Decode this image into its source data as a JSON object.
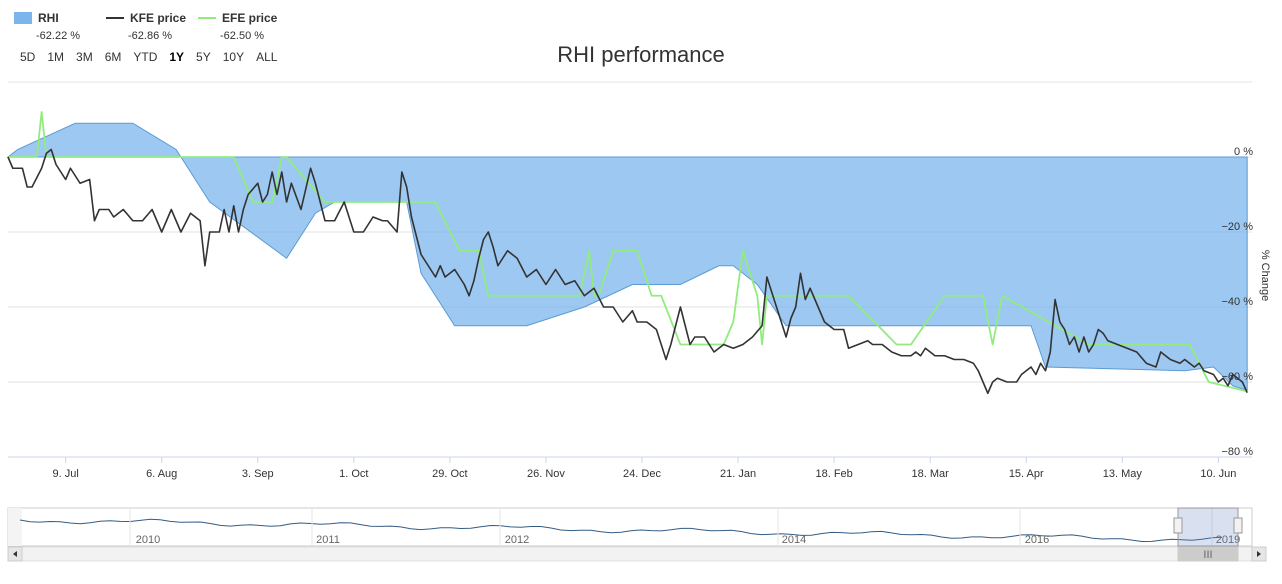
{
  "legend": {
    "items": [
      {
        "name": "RHI",
        "value": "-62.22 %",
        "color": "#7cb5ec",
        "kind": "area"
      },
      {
        "name": "KFE price",
        "value": "-62.86 %",
        "color": "#333333",
        "kind": "line"
      },
      {
        "name": "EFE price",
        "value": "-62.50 %",
        "color": "#90ed7d",
        "kind": "line"
      }
    ]
  },
  "range_selector": {
    "buttons": [
      "5D",
      "1M",
      "3M",
      "6M",
      "YTD",
      "1Y",
      "5Y",
      "10Y",
      "ALL"
    ],
    "active": "1Y"
  },
  "navigator": {
    "labels": [
      "2010",
      "2011",
      "2012",
      "2014",
      "2016",
      "2019"
    ],
    "scroll_grip": "III"
  },
  "chart_data": {
    "type": "line",
    "title": "RHI performance",
    "ylabel": "% Change",
    "ylim": [
      -80,
      20
    ],
    "yticks": [
      "0 %",
      "−20 %",
      "−40 %",
      "−60 %",
      "−80 %"
    ],
    "ytick_values": [
      0,
      -20,
      -40,
      -60,
      -80
    ],
    "x_tick_labels": [
      "9. Jul",
      "6. Aug",
      "3. Sep",
      "1. Oct",
      "29. Oct",
      "26. Nov",
      "24. Dec",
      "21. Jan",
      "18. Feb",
      "18. Mar",
      "15. Apr",
      "13. May",
      "10. Jun"
    ],
    "x_tick_index": [
      12,
      32,
      52,
      72,
      92,
      112,
      132,
      152,
      172,
      192,
      212,
      232,
      252
    ],
    "x_points": 260,
    "series": [
      {
        "name": "RHI",
        "type": "area",
        "color": "#7cb5ec",
        "points": [
          [
            0,
            0
          ],
          [
            2,
            2
          ],
          [
            14,
            9
          ],
          [
            26,
            9
          ],
          [
            35,
            2
          ],
          [
            42,
            -12
          ],
          [
            58,
            -27
          ],
          [
            64,
            -15
          ],
          [
            68,
            -12
          ],
          [
            83,
            -12
          ],
          [
            86,
            -31
          ],
          [
            93,
            -45
          ],
          [
            108,
            -45
          ],
          [
            120,
            -40
          ],
          [
            130,
            -34
          ],
          [
            140,
            -34
          ],
          [
            148,
            -29
          ],
          [
            151,
            -29
          ],
          [
            156,
            -34
          ],
          [
            162,
            -45
          ],
          [
            213,
            -45
          ],
          [
            216,
            -56
          ],
          [
            245,
            -57
          ],
          [
            251,
            -56
          ],
          [
            255,
            -61
          ],
          [
            258,
            -62.22
          ]
        ]
      },
      {
        "name": "KFE price",
        "type": "line",
        "color": "#333333",
        "points": [
          [
            0,
            0
          ],
          [
            1,
            -3
          ],
          [
            3,
            -3
          ],
          [
            4,
            -8
          ],
          [
            5,
            -8
          ],
          [
            7,
            -3
          ],
          [
            8,
            1
          ],
          [
            9,
            2
          ],
          [
            10,
            -2
          ],
          [
            12,
            -6
          ],
          [
            13,
            -3
          ],
          [
            15,
            -7
          ],
          [
            17,
            -6
          ],
          [
            18,
            -17
          ],
          [
            19,
            -14
          ],
          [
            21,
            -14
          ],
          [
            22,
            -16
          ],
          [
            24,
            -14
          ],
          [
            26,
            -17
          ],
          [
            28,
            -17
          ],
          [
            30,
            -14
          ],
          [
            32,
            -20
          ],
          [
            34,
            -14
          ],
          [
            36,
            -20
          ],
          [
            38,
            -15
          ],
          [
            40,
            -17
          ],
          [
            41,
            -29
          ],
          [
            42,
            -20
          ],
          [
            44,
            -20
          ],
          [
            45,
            -14
          ],
          [
            46,
            -20
          ],
          [
            47,
            -13
          ],
          [
            48,
            -20
          ],
          [
            49,
            -14
          ],
          [
            50,
            -10
          ],
          [
            52,
            -7
          ],
          [
            53,
            -12
          ],
          [
            54,
            -10
          ],
          [
            55,
            -4
          ],
          [
            56,
            -10
          ],
          [
            57,
            -4
          ],
          [
            58,
            -12
          ],
          [
            59,
            -7
          ],
          [
            61,
            -14
          ],
          [
            63,
            -3
          ],
          [
            64,
            -7
          ],
          [
            66,
            -17
          ],
          [
            68,
            -17
          ],
          [
            70,
            -12
          ],
          [
            72,
            -20
          ],
          [
            74,
            -20
          ],
          [
            76,
            -16
          ],
          [
            78,
            -17
          ],
          [
            79,
            -17
          ],
          [
            81,
            -20
          ],
          [
            82,
            -4
          ],
          [
            83,
            -8
          ],
          [
            84,
            -16
          ],
          [
            86,
            -26
          ],
          [
            88,
            -30
          ],
          [
            89,
            -32
          ],
          [
            90,
            -29
          ],
          [
            91,
            -32
          ],
          [
            93,
            -30
          ],
          [
            95,
            -34
          ],
          [
            96,
            -37
          ],
          [
            97,
            -33
          ],
          [
            98,
            -27
          ],
          [
            99,
            -22
          ],
          [
            100,
            -20
          ],
          [
            101,
            -24
          ],
          [
            102,
            -29
          ],
          [
            103,
            -27
          ],
          [
            104,
            -25
          ],
          [
            106,
            -27
          ],
          [
            108,
            -32
          ],
          [
            110,
            -30
          ],
          [
            112,
            -34
          ],
          [
            114,
            -30
          ],
          [
            116,
            -34
          ],
          [
            118,
            -33
          ],
          [
            120,
            -37
          ],
          [
            122,
            -35
          ],
          [
            124,
            -40
          ],
          [
            126,
            -40
          ],
          [
            128,
            -44
          ],
          [
            130,
            -41
          ],
          [
            131,
            -44
          ],
          [
            133,
            -44
          ],
          [
            135,
            -46
          ],
          [
            136,
            -50
          ],
          [
            137,
            -54
          ],
          [
            138,
            -50
          ],
          [
            140,
            -40
          ],
          [
            142,
            -50
          ],
          [
            143,
            -48
          ],
          [
            145,
            -48
          ],
          [
            147,
            -52
          ],
          [
            149,
            -50
          ],
          [
            151,
            -51
          ],
          [
            153,
            -50
          ],
          [
            155,
            -48
          ],
          [
            157,
            -45
          ],
          [
            158,
            -32
          ],
          [
            160,
            -40
          ],
          [
            162,
            -48
          ],
          [
            163,
            -43
          ],
          [
            164,
            -40
          ],
          [
            165,
            -31
          ],
          [
            166,
            -38
          ],
          [
            167,
            -35
          ],
          [
            168,
            -38
          ],
          [
            170,
            -44
          ],
          [
            172,
            -46
          ],
          [
            174,
            -46
          ],
          [
            175,
            -51
          ],
          [
            177,
            -50
          ],
          [
            179,
            -49
          ],
          [
            180,
            -50
          ],
          [
            182,
            -50
          ],
          [
            184,
            -52
          ],
          [
            186,
            -53
          ],
          [
            188,
            -53
          ],
          [
            189,
            -52
          ],
          [
            190,
            -53
          ],
          [
            191,
            -51
          ],
          [
            193,
            -53
          ],
          [
            195,
            -53
          ],
          [
            197,
            -54
          ],
          [
            199,
            -54
          ],
          [
            201,
            -55
          ],
          [
            202,
            -57
          ],
          [
            203,
            -60
          ],
          [
            204,
            -63
          ],
          [
            205,
            -60
          ],
          [
            206,
            -59
          ],
          [
            208,
            -60
          ],
          [
            210,
            -60
          ],
          [
            211,
            -58
          ],
          [
            212,
            -57
          ],
          [
            213,
            -56
          ],
          [
            214,
            -58
          ],
          [
            215,
            -55
          ],
          [
            216,
            -57
          ],
          [
            217,
            -52
          ],
          [
            218,
            -38
          ],
          [
            219,
            -44
          ],
          [
            220,
            -46
          ],
          [
            221,
            -50
          ],
          [
            222,
            -48
          ],
          [
            223,
            -52
          ],
          [
            224,
            -48
          ],
          [
            225,
            -52
          ],
          [
            226,
            -50
          ],
          [
            227,
            -46
          ],
          [
            228,
            -47
          ],
          [
            229,
            -49
          ],
          [
            231,
            -50
          ],
          [
            233,
            -51
          ],
          [
            235,
            -52
          ],
          [
            237,
            -55
          ],
          [
            239,
            -56
          ],
          [
            240,
            -52
          ],
          [
            242,
            -54
          ],
          [
            244,
            -55
          ],
          [
            245,
            -54
          ],
          [
            247,
            -56
          ],
          [
            248,
            -55
          ],
          [
            249,
            -57
          ],
          [
            251,
            -58
          ],
          [
            252,
            -60
          ],
          [
            253,
            -59
          ],
          [
            254,
            -61
          ],
          [
            255,
            -58
          ],
          [
            256,
            -59
          ],
          [
            257,
            -60
          ],
          [
            258,
            -62.86
          ]
        ]
      },
      {
        "name": "EFE price",
        "type": "line",
        "color": "#90ed7d",
        "points": [
          [
            0,
            0
          ],
          [
            6,
            0
          ],
          [
            7,
            12
          ],
          [
            8,
            0
          ],
          [
            47,
            0
          ],
          [
            51,
            -12
          ],
          [
            55,
            -12
          ],
          [
            57,
            0
          ],
          [
            58,
            0
          ],
          [
            66,
            -12
          ],
          [
            89,
            -12
          ],
          [
            94,
            -25
          ],
          [
            98,
            -25
          ],
          [
            100,
            -37
          ],
          [
            115,
            -37
          ],
          [
            119,
            -37
          ],
          [
            121,
            -25
          ],
          [
            122,
            -37
          ],
          [
            123,
            -37
          ],
          [
            126,
            -25
          ],
          [
            131,
            -25
          ],
          [
            134,
            -37
          ],
          [
            136,
            -37
          ],
          [
            140,
            -50
          ],
          [
            149,
            -50
          ],
          [
            151,
            -44
          ],
          [
            153,
            -25
          ],
          [
            156,
            -37
          ],
          [
            157,
            -50
          ],
          [
            158,
            -37
          ],
          [
            175,
            -37
          ],
          [
            185,
            -50
          ],
          [
            188,
            -50
          ],
          [
            195,
            -37
          ],
          [
            200,
            -37
          ],
          [
            203,
            -37
          ],
          [
            205,
            -50
          ],
          [
            207,
            -37
          ],
          [
            225,
            -50
          ],
          [
            246,
            -50
          ],
          [
            250,
            -60
          ],
          [
            258,
            -62.5
          ]
        ]
      }
    ]
  }
}
